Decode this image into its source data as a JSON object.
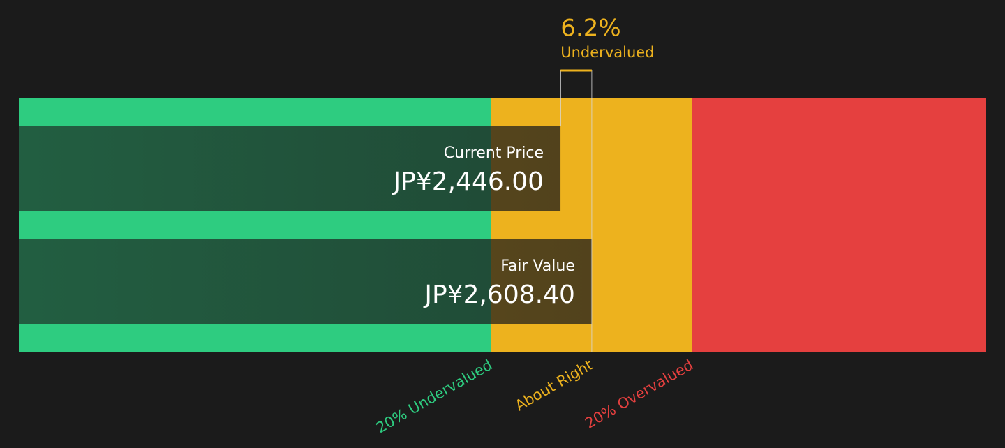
{
  "chart_data": {
    "type": "valuation-bar",
    "categories": [
      "Current Price",
      "Fair Value"
    ],
    "values": [
      2446,
      2608.4
    ],
    "value_labels": [
      "JP¥2,446.00",
      "JP¥2,608.40"
    ],
    "xlim": [
      -366,
      4656
    ],
    "zones": [
      {
        "label": "20% Undervalued",
        "value": 2086.72,
        "color": "#2ecc80"
      },
      {
        "label": "About Right",
        "value": 2608.4,
        "color": "#edb21e"
      },
      {
        "label": "20% Overvalued",
        "value": 3130.08,
        "color": "#e5403f"
      }
    ],
    "annotation": {
      "value": 6.2,
      "label": "6.2%",
      "text": "Undervalued"
    }
  }
}
